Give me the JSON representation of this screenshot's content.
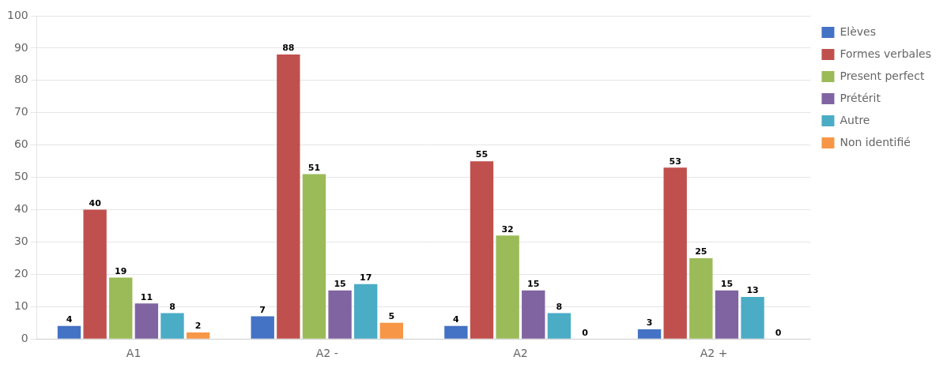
{
  "chart_data": {
    "type": "bar",
    "categories": [
      "A1",
      "A2 -",
      "A2",
      "A2 +"
    ],
    "series": [
      {
        "name": "Elèves",
        "color": "#4472C4",
        "values": [
          4,
          7,
          4,
          3
        ]
      },
      {
        "name": "Formes verbales",
        "color": "#C0504D",
        "values": [
          40,
          88,
          55,
          53
        ]
      },
      {
        "name": "Present perfect",
        "color": "#9BBB59",
        "values": [
          19,
          51,
          32,
          25
        ]
      },
      {
        "name": "Prétérit",
        "color": "#8064A2",
        "values": [
          11,
          15,
          15,
          15
        ]
      },
      {
        "name": "Autre",
        "color": "#4BACC6",
        "values": [
          8,
          17,
          8,
          13
        ]
      },
      {
        "name": "Non identifié",
        "color": "#F79646",
        "values": [
          2,
          5,
          0,
          0
        ]
      }
    ],
    "ylim": [
      0,
      100
    ],
    "yticks": [
      0,
      10,
      20,
      30,
      40,
      50,
      60,
      70,
      80,
      90,
      100
    ],
    "grid": true,
    "legend": "right",
    "data_labels": true
  }
}
